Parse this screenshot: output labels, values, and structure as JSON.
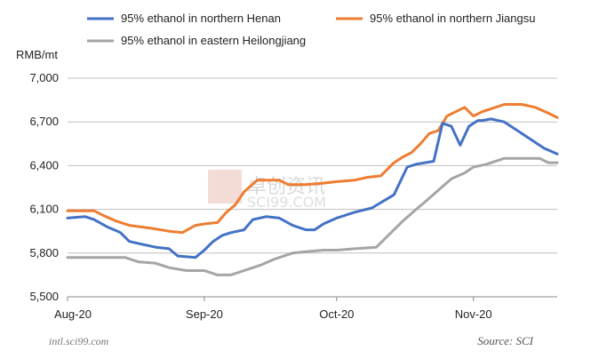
{
  "chart_data": {
    "type": "line",
    "title": "",
    "ylabel": "RMB/mt",
    "xlabel": "",
    "ylim": [
      5500,
      7000
    ],
    "yticks": [
      5500,
      5800,
      6100,
      6400,
      6700,
      7000
    ],
    "ytick_labels": [
      "5,500",
      "5,800",
      "6,100",
      "6,400",
      "6,700",
      "7,000"
    ],
    "xtick_labels": [
      "Aug-20",
      "Sep-20",
      "Oct-20",
      "Nov-20"
    ],
    "x_start": "2020-08-01",
    "x_end": "2020-11-20",
    "grid": "horizontal",
    "legend": "top",
    "series": [
      {
        "name": "95% ethanol in northern Henan",
        "color": "#4472C4",
        "x": [
          "2020-08-01",
          "2020-08-05",
          "2020-08-07",
          "2020-08-10",
          "2020-08-13",
          "2020-08-15",
          "2020-08-18",
          "2020-08-21",
          "2020-08-24",
          "2020-08-26",
          "2020-08-30",
          "2020-09-01",
          "2020-09-03",
          "2020-09-05",
          "2020-09-07",
          "2020-09-10",
          "2020-09-12",
          "2020-09-15",
          "2020-09-18",
          "2020-09-21",
          "2020-09-24",
          "2020-09-26",
          "2020-09-28",
          "2020-10-01",
          "2020-10-05",
          "2020-10-09",
          "2020-10-14",
          "2020-10-17",
          "2020-10-19",
          "2020-10-21",
          "2020-10-23",
          "2020-10-25",
          "2020-10-27",
          "2020-10-29",
          "2020-10-31",
          "2020-11-02",
          "2020-11-03",
          "2020-11-05",
          "2020-11-08",
          "2020-11-11",
          "2020-11-14",
          "2020-11-17",
          "2020-11-20"
        ],
        "values": [
          6040,
          6050,
          6030,
          5980,
          5940,
          5880,
          5860,
          5840,
          5830,
          5780,
          5770,
          5820,
          5880,
          5920,
          5940,
          5960,
          6030,
          6050,
          6040,
          5990,
          5960,
          5960,
          6000,
          6040,
          6080,
          6110,
          6200,
          6390,
          6410,
          6420,
          6430,
          6690,
          6670,
          6540,
          6670,
          6710,
          6710,
          6720,
          6700,
          6640,
          6580,
          6520,
          6480
        ]
      },
      {
        "name": "95% ethanol in northern Jiangsu",
        "color": "#ED7D31",
        "x": [
          "2020-08-01",
          "2020-08-07",
          "2020-08-09",
          "2020-08-12",
          "2020-08-15",
          "2020-08-20",
          "2020-08-24",
          "2020-08-27",
          "2020-08-30",
          "2020-09-01",
          "2020-09-04",
          "2020-09-06",
          "2020-09-08",
          "2020-09-10",
          "2020-09-13",
          "2020-09-15",
          "2020-09-18",
          "2020-09-20",
          "2020-09-24",
          "2020-09-28",
          "2020-10-01",
          "2020-10-05",
          "2020-10-08",
          "2020-10-11",
          "2020-10-14",
          "2020-10-16",
          "2020-10-18",
          "2020-10-20",
          "2020-10-22",
          "2020-10-24",
          "2020-10-26",
          "2020-10-28",
          "2020-10-30",
          "2020-11-01",
          "2020-11-03",
          "2020-11-05",
          "2020-11-08",
          "2020-11-12",
          "2020-11-15",
          "2020-11-18",
          "2020-11-20"
        ],
        "values": [
          6090,
          6090,
          6060,
          6020,
          5990,
          5970,
          5950,
          5940,
          5990,
          6000,
          6010,
          6080,
          6130,
          6220,
          6300,
          6300,
          6300,
          6270,
          6270,
          6280,
          6290,
          6300,
          6320,
          6330,
          6420,
          6460,
          6490,
          6550,
          6620,
          6640,
          6740,
          6770,
          6800,
          6740,
          6770,
          6790,
          6820,
          6820,
          6800,
          6760,
          6730
        ]
      },
      {
        "name": "95% ethanol in eastern Heilongjiang",
        "color": "#A5A5A5",
        "x": [
          "2020-08-01",
          "2020-08-14",
          "2020-08-17",
          "2020-08-21",
          "2020-08-24",
          "2020-08-28",
          "2020-09-01",
          "2020-09-04",
          "2020-09-07",
          "2020-09-10",
          "2020-09-14",
          "2020-09-17",
          "2020-09-21",
          "2020-09-24",
          "2020-09-28",
          "2020-10-01",
          "2020-10-05",
          "2020-10-10",
          "2020-10-14",
          "2020-10-16",
          "2020-10-19",
          "2020-10-21",
          "2020-10-24",
          "2020-10-27",
          "2020-10-30",
          "2020-11-01",
          "2020-11-04",
          "2020-11-08",
          "2020-11-12",
          "2020-11-16",
          "2020-11-18",
          "2020-11-20"
        ],
        "values": [
          5770,
          5770,
          5740,
          5730,
          5700,
          5680,
          5680,
          5650,
          5650,
          5680,
          5720,
          5760,
          5800,
          5810,
          5820,
          5820,
          5830,
          5840,
          5960,
          6020,
          6100,
          6150,
          6230,
          6310,
          6350,
          6390,
          6410,
          6450,
          6450,
          6450,
          6420,
          6420
        ]
      }
    ],
    "source": "Source: SCI",
    "footer_url": "intl.sci99.com",
    "watermark": "卓创资讯",
    "watermark_url": "SCI99.COM"
  }
}
